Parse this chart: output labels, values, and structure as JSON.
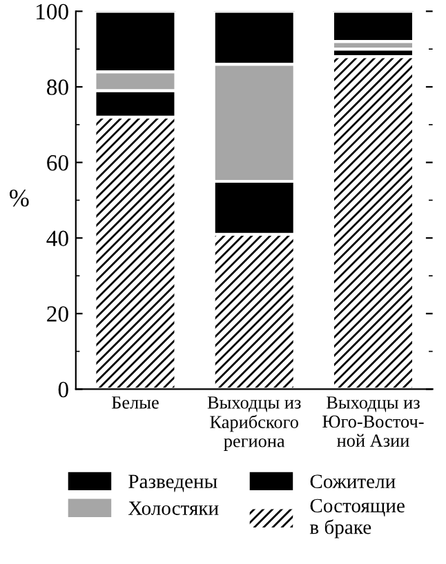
{
  "chart_data": {
    "type": "bar",
    "stacked": true,
    "ylabel": "%",
    "categories": [
      "Белые",
      "Выходцы из\nКарибского\nрегиона",
      "Выходцы из\nЮго-Восточ-\nной Азии"
    ],
    "series": [
      {
        "name": "Состоящие\nв браке",
        "color": "#ffffff",
        "values": [
          72,
          41,
          88
        ]
      },
      {
        "name": "Сожители",
        "color": "#000000",
        "values": [
          7,
          14,
          2
        ]
      },
      {
        "name": "Холостяки",
        "color": "#a6a6a6",
        "values": [
          5,
          31,
          2
        ]
      },
      {
        "name": "Разведены",
        "color": "#000000",
        "values": [
          16,
          14,
          8
        ]
      }
    ],
    "ylim": [
      0,
      100
    ],
    "yticks": [
      0,
      20,
      40,
      60,
      80,
      100
    ],
    "legend": "bottom",
    "grid": false
  }
}
